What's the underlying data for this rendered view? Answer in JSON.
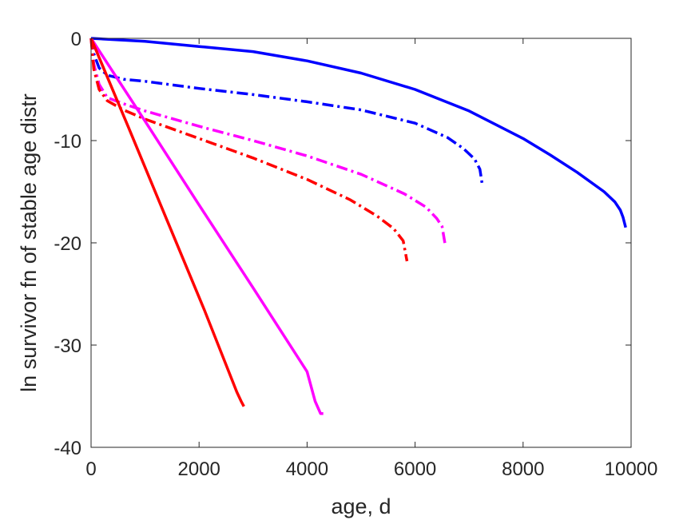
{
  "chart_data": {
    "type": "line",
    "title": "",
    "xlabel": "age, d",
    "ylabel": "ln survivor fn of stable age distr",
    "xlim": [
      0,
      10000
    ],
    "ylim": [
      -40,
      0
    ],
    "xticks": [
      0,
      2000,
      4000,
      6000,
      8000,
      10000
    ],
    "yticks": [
      0,
      -10,
      -20,
      -30,
      -40
    ],
    "xtick_labels": [
      "0",
      "2000",
      "4000",
      "6000",
      "8000",
      "10000"
    ],
    "ytick_labels": [
      "0",
      "-10",
      "-20",
      "-30",
      "-40"
    ],
    "grid": false,
    "legend": "none",
    "series": [
      {
        "color": "#0000ff",
        "style": "solid",
        "x": [
          0,
          1000,
          2000,
          3000,
          4000,
          5000,
          6000,
          7000,
          8000,
          8500,
          9000,
          9500,
          9700,
          9800,
          9850,
          9900
        ],
        "y": [
          0,
          -0.3,
          -0.8,
          -1.3,
          -2.2,
          -3.4,
          -5.0,
          -7.1,
          -9.8,
          -11.4,
          -13.1,
          -15.0,
          -16.0,
          -16.8,
          -17.5,
          -18.5
        ]
      },
      {
        "color": "#0000ff",
        "style": "dashdot",
        "x": [
          0,
          50,
          150,
          300,
          600,
          1000,
          2000,
          3000,
          4000,
          5000,
          6000,
          6600,
          6900,
          7100,
          7200,
          7250
        ],
        "y": [
          0,
          -1.5,
          -2.9,
          -3.6,
          -4.0,
          -4.2,
          -4.9,
          -5.5,
          -6.2,
          -7.0,
          -8.3,
          -9.7,
          -10.8,
          -11.8,
          -12.8,
          -14.5
        ]
      },
      {
        "color": "#ff00ff",
        "style": "dashdot",
        "x": [
          0,
          50,
          150,
          300,
          600,
          1000,
          2000,
          3000,
          4000,
          5000,
          5800,
          6200,
          6400,
          6500,
          6560
        ],
        "y": [
          0,
          -2.5,
          -4.5,
          -5.8,
          -6.4,
          -7.1,
          -8.6,
          -10.0,
          -11.5,
          -13.3,
          -15.2,
          -16.5,
          -17.6,
          -18.4,
          -20.3
        ]
      },
      {
        "color": "#ff0000",
        "style": "dashdot",
        "x": [
          0,
          50,
          150,
          300,
          600,
          1000,
          2000,
          3000,
          4000,
          4800,
          5300,
          5600,
          5780,
          5850
        ],
        "y": [
          0,
          -3.0,
          -5.0,
          -6.1,
          -7.0,
          -7.9,
          -9.8,
          -11.7,
          -13.8,
          -15.8,
          -17.4,
          -18.6,
          -19.8,
          -21.8
        ]
      },
      {
        "color": "#ff00ff",
        "style": "solid",
        "x": [
          0,
          1000,
          2000,
          3000,
          4000,
          4150,
          4250,
          4300
        ],
        "y": [
          0,
          -8.1,
          -16.3,
          -24.4,
          -32.6,
          -35.5,
          -36.7,
          -36.7
        ]
      },
      {
        "color": "#ff0000",
        "style": "solid",
        "x": [
          0,
          700,
          1400,
          2100,
          2700,
          2780,
          2830
        ],
        "y": [
          0,
          -8.8,
          -17.7,
          -26.6,
          -34.6,
          -35.5,
          -36.0
        ]
      }
    ]
  }
}
